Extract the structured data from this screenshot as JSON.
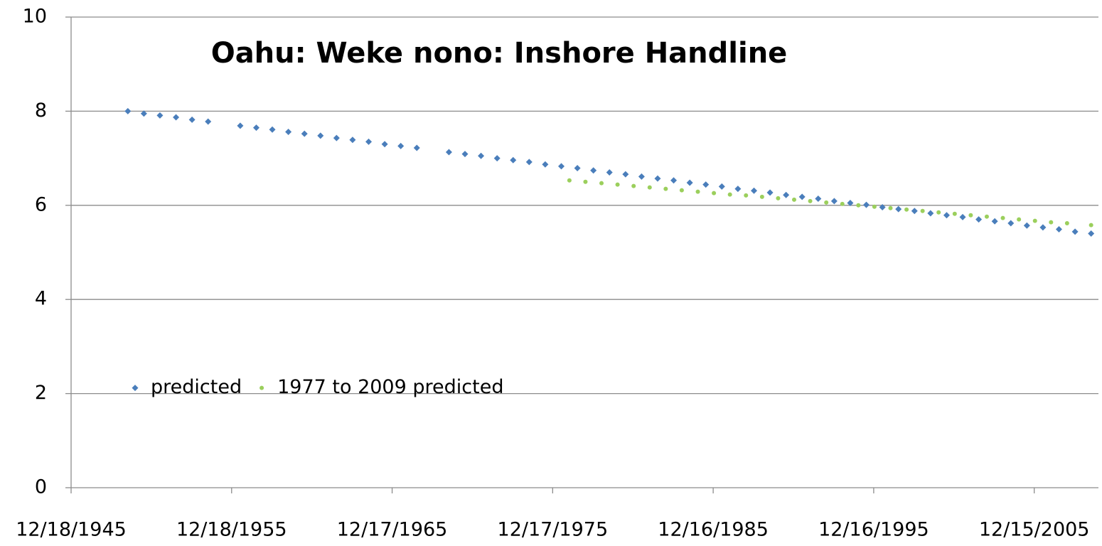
{
  "chart_data": {
    "type": "scatter",
    "title": "Oahu: Weke nono: Inshore Handline",
    "series": [
      {
        "name": "predicted",
        "color": "#4a7ebb",
        "marker": "diamond",
        "x": [
          "1949-07-01",
          "1950-07-01",
          "1951-07-01",
          "1952-07-01",
          "1953-07-01",
          "1954-07-01",
          "1956-07-01",
          "1957-07-01",
          "1958-07-01",
          "1959-07-01",
          "1960-07-01",
          "1961-07-01",
          "1962-07-01",
          "1963-07-01",
          "1964-07-01",
          "1965-07-01",
          "1966-07-01",
          "1967-07-01",
          "1969-07-01",
          "1970-07-01",
          "1971-07-01",
          "1972-07-01",
          "1973-07-01",
          "1974-07-01",
          "1975-07-01",
          "1976-07-01",
          "1977-07-01",
          "1978-07-01",
          "1979-07-01",
          "1980-07-01",
          "1981-07-01",
          "1982-07-01",
          "1983-07-01",
          "1984-07-01",
          "1985-07-01",
          "1986-07-01",
          "1987-07-01",
          "1988-07-01",
          "1989-07-01",
          "1990-07-01",
          "1991-07-01",
          "1992-07-01",
          "1993-07-01",
          "1994-07-01",
          "1995-07-01",
          "1996-07-01",
          "1997-07-01",
          "1998-07-01",
          "1999-07-01",
          "2000-07-01",
          "2001-07-01",
          "2002-07-01",
          "2003-07-01",
          "2004-07-01",
          "2005-07-01",
          "2006-07-01",
          "2007-07-01",
          "2008-07-01",
          "2009-07-01"
        ],
        "values": [
          8.0,
          7.95,
          7.91,
          7.87,
          7.82,
          7.78,
          7.69,
          7.65,
          7.61,
          7.56,
          7.52,
          7.48,
          7.43,
          7.39,
          7.35,
          7.3,
          7.26,
          7.22,
          7.13,
          7.09,
          7.05,
          7.0,
          6.96,
          6.92,
          6.87,
          6.83,
          6.79,
          6.74,
          6.7,
          6.66,
          6.61,
          6.57,
          6.53,
          6.48,
          6.44,
          6.4,
          6.35,
          6.31,
          6.27,
          6.22,
          6.18,
          6.14,
          6.09,
          6.05,
          6.01,
          5.96,
          5.92,
          5.88,
          5.83,
          5.79,
          5.75,
          5.7,
          5.66,
          5.62,
          5.57,
          5.53,
          5.49,
          5.44,
          5.4
        ]
      },
      {
        "name": "1977 to 2009 predicted",
        "color": "#9bcf5c",
        "marker": "circle",
        "x": [
          "1977-01-01",
          "1978-01-01",
          "1979-01-01",
          "1980-01-01",
          "1981-01-01",
          "1982-01-01",
          "1983-01-01",
          "1984-01-01",
          "1985-01-01",
          "1986-01-01",
          "1987-01-01",
          "1988-01-01",
          "1989-01-01",
          "1990-01-01",
          "1991-01-01",
          "1992-01-01",
          "1993-01-01",
          "1994-01-01",
          "1995-01-01",
          "1996-01-01",
          "1997-01-01",
          "1998-01-01",
          "1999-01-01",
          "2000-01-01",
          "2001-01-01",
          "2002-01-01",
          "2003-01-01",
          "2004-01-01",
          "2005-01-01",
          "2006-01-01",
          "2007-01-01",
          "2008-01-01",
          "2009-07-01"
        ],
        "values": [
          6.53,
          6.5,
          6.47,
          6.44,
          6.41,
          6.38,
          6.35,
          6.32,
          6.29,
          6.26,
          6.23,
          6.21,
          6.18,
          6.15,
          6.12,
          6.09,
          6.06,
          6.03,
          6.0,
          5.97,
          5.94,
          5.91,
          5.88,
          5.85,
          5.82,
          5.79,
          5.76,
          5.73,
          5.7,
          5.67,
          5.64,
          5.62,
          5.58
        ]
      }
    ],
    "xlim": [
      "1945-12-18",
      "2009-12-15"
    ],
    "xticks": [
      {
        "value": "1945-12-18",
        "label": "12/18/1945"
      },
      {
        "value": "1955-12-18",
        "label": "12/18/1955"
      },
      {
        "value": "1965-12-17",
        "label": "12/17/1965"
      },
      {
        "value": "1975-12-17",
        "label": "12/17/1975"
      },
      {
        "value": "1985-12-16",
        "label": "12/16/1985"
      },
      {
        "value": "1995-12-16",
        "label": "12/16/1995"
      },
      {
        "value": "2005-12-15",
        "label": "12/15/2005"
      }
    ],
    "ylim": [
      0,
      10
    ],
    "yticks": [
      0,
      2,
      4,
      6,
      8,
      10
    ],
    "grid": true,
    "legend": "lower-left"
  }
}
